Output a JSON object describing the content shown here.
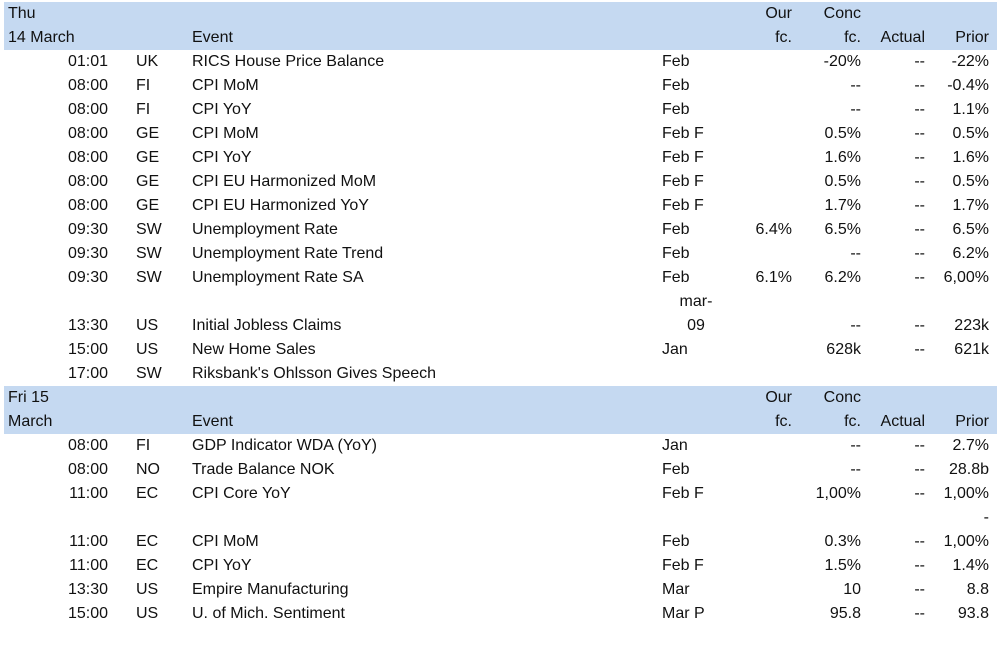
{
  "columns": {
    "event": "Event",
    "our_l1": "Our",
    "our_l2": "fc.",
    "conc_l1": "Conc",
    "conc_l2": "fc.",
    "actual": "Actual",
    "prior": "Prior"
  },
  "days": [
    {
      "label_l1": "Thu",
      "label_l2": "14 March",
      "rows": [
        {
          "time": "01:01",
          "country": "UK",
          "event": "RICS House Price Balance",
          "period": "Feb",
          "our": "",
          "conc": "-20%",
          "actual": "--",
          "prior": "-22%"
        },
        {
          "time": "08:00",
          "country": "FI",
          "event": "CPI MoM",
          "period": "Feb",
          "our": "",
          "conc": "--",
          "actual": "--",
          "prior": "-0.4%"
        },
        {
          "time": "08:00",
          "country": "FI",
          "event": "CPI YoY",
          "period": "Feb",
          "our": "",
          "conc": "--",
          "actual": "--",
          "prior": "1.1%"
        },
        {
          "time": "08:00",
          "country": "GE",
          "event": "CPI MoM",
          "period": "Feb F",
          "our": "",
          "conc": "0.5%",
          "actual": "--",
          "prior": "0.5%"
        },
        {
          "time": "08:00",
          "country": "GE",
          "event": "CPI YoY",
          "period": "Feb F",
          "our": "",
          "conc": "1.6%",
          "actual": "--",
          "prior": "1.6%"
        },
        {
          "time": "08:00",
          "country": "GE",
          "event": "CPI EU Harmonized MoM",
          "period": "Feb F",
          "our": "",
          "conc": "0.5%",
          "actual": "--",
          "prior": "0.5%"
        },
        {
          "time": "08:00",
          "country": "GE",
          "event": "CPI EU Harmonized YoY",
          "period": "Feb F",
          "our": "",
          "conc": "1.7%",
          "actual": "--",
          "prior": "1.7%"
        },
        {
          "time": "09:30",
          "country": "SW",
          "event": "Unemployment Rate",
          "period": "Feb",
          "our": "6.4%",
          "conc": "6.5%",
          "actual": "--",
          "prior": "6.5%"
        },
        {
          "time": "09:30",
          "country": "SW",
          "event": "Unemployment Rate Trend",
          "period": "Feb",
          "our": "",
          "conc": "--",
          "actual": "--",
          "prior": "6.2%"
        },
        {
          "time": "09:30",
          "country": "SW",
          "event": "Unemployment Rate SA",
          "period": "Feb",
          "our": "6.1%",
          "conc": "6.2%",
          "actual": "--",
          "prior": "6,00%"
        },
        {
          "time": "13:30",
          "country": "US",
          "event": "Initial Jobless Claims",
          "period": "",
          "period_l1": "mar-",
          "period_l2": "09",
          "our": "",
          "conc": "--",
          "actual": "--",
          "prior": "223k"
        },
        {
          "time": "15:00",
          "country": "US",
          "event": "New Home Sales",
          "period": "Jan",
          "our": "",
          "conc": "628k",
          "actual": "--",
          "prior": "621k"
        },
        {
          "time": "17:00",
          "country": "SW",
          "event": "Riksbank's Ohlsson Gives Speech",
          "period": "",
          "our": "",
          "conc": "",
          "actual": "",
          "prior": ""
        }
      ]
    },
    {
      "label_l1": "Fri 15",
      "label_l2": "March",
      "rows": [
        {
          "time": "08:00",
          "country": "FI",
          "event": "GDP Indicator WDA (YoY)",
          "period": "Jan",
          "our": "",
          "conc": "--",
          "actual": "--",
          "prior": "2.7%"
        },
        {
          "time": "08:00",
          "country": "NO",
          "event": "Trade Balance NOK",
          "period": "Feb",
          "our": "",
          "conc": "--",
          "actual": "--",
          "prior": "28.8b"
        },
        {
          "time": "11:00",
          "country": "EC",
          "event": "CPI Core YoY",
          "period": "Feb F",
          "our": "",
          "conc": "1,00%",
          "actual": "--",
          "prior": "1,00%"
        },
        {
          "time": "11:00",
          "country": "EC",
          "event": "CPI MoM",
          "period": "Feb",
          "our": "",
          "conc": "0.3%",
          "actual": "--",
          "prior": "1,00%",
          "prior_l1": "-"
        },
        {
          "time": "11:00",
          "country": "EC",
          "event": "CPI YoY",
          "period": "Feb F",
          "our": "",
          "conc": "1.5%",
          "actual": "--",
          "prior": "1.4%"
        },
        {
          "time": "13:30",
          "country": "US",
          "event": "Empire Manufacturing",
          "period": "Mar",
          "our": "",
          "conc": "10",
          "actual": "--",
          "prior": "8.8"
        },
        {
          "time": "15:00",
          "country": "US",
          "event": "U. of Mich. Sentiment",
          "period": "Mar P",
          "our": "",
          "conc": "95.8",
          "actual": "--",
          "prior": "93.8"
        }
      ]
    }
  ]
}
